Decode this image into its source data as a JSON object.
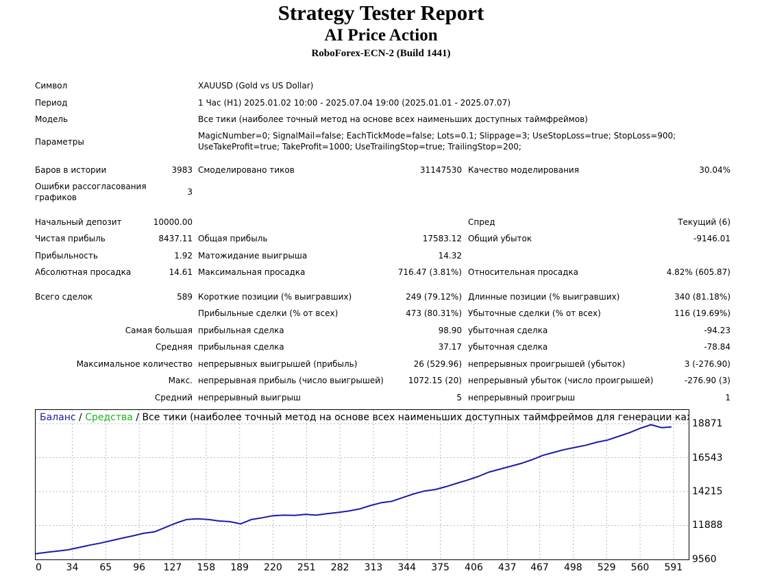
{
  "report": {
    "title": "Strategy Tester Report",
    "expert": "AI Price Action",
    "server": "RoboForex-ECN-2 (Build 1441)"
  },
  "info": {
    "symbol_label": "Символ",
    "symbol_value": "XAUUSD (Gold vs US Dollar)",
    "period_label": "Период",
    "period_value": "1 Час (H1) 2025.01.02 10:00 - 2025.07.04 19:00 (2025.01.01 - 2025.07.07)",
    "model_label": "Модель",
    "model_value": "Все тики (наиболее точный метод на основе всех наименьших доступных таймфреймов)",
    "params_label": "Параметры",
    "params_line1": "MagicNumber=0; SignalMail=false; EachTickMode=false; Lots=0.1; Slippage=3; UseStopLoss=true; StopLoss=900;",
    "params_line2": "UseTakeProfit=true; TakeProfit=1000; UseTrailingStop=true; TrailingStop=200;"
  },
  "stats": {
    "bars_label": "Баров в истории",
    "bars_value": "3983",
    "ticks_label": "Смоделировано тиков",
    "ticks_value": "31147530",
    "quality_label": "Качество моделирования",
    "quality_value": "30.04%",
    "mismatch_label_1": "Ошибки рассогласования",
    "mismatch_label_2": "графиков",
    "mismatch_value": "3",
    "deposit_label": "Начальный депозит",
    "deposit_value": "10000.00",
    "spread_label": "Спред",
    "spread_value": "Текущий (6)",
    "net_label": "Чистая прибыль",
    "net_value": "8437.11",
    "gross_profit_label": "Общая прибыль",
    "gross_profit_value": "17583.12",
    "gross_loss_label": "Общий убыток",
    "gross_loss_value": "-9146.01",
    "pf_label": "Прибыльность",
    "pf_value": "1.92",
    "payoff_label": "Матожидание выигрыша",
    "payoff_value": "14.32",
    "abs_dd_label": "Абсолютная просадка",
    "abs_dd_value": "14.61",
    "max_dd_label": "Максимальная просадка",
    "max_dd_value": "716.47 (3.81%)",
    "rel_dd_label": "Относительная просадка",
    "rel_dd_value": "4.82% (605.87)",
    "trades_label": "Всего сделок",
    "trades_value": "589",
    "short_label": "Короткие позиции (% выигравших)",
    "short_value": "249 (79.12%)",
    "long_label": "Длинные позиции (% выигравших)",
    "long_value": "340 (81.18%)",
    "profit_trades_label": "Прибыльные сделки (% от всех)",
    "profit_trades_value": "473 (80.31%)",
    "loss_trades_label": "Убыточные сделки (% от всех)",
    "loss_trades_value": "116 (19.69%)",
    "largest_label": "Самая большая",
    "largest_profit_label": "прибыльная сделка",
    "largest_profit_value": "98.90",
    "largest_loss_label": "убыточная сделка",
    "largest_loss_value": "-94.23",
    "avg_label": "Средняя",
    "avg_profit_label": "прибыльная сделка",
    "avg_profit_value": "37.17",
    "avg_loss_label": "убыточная сделка",
    "avg_loss_value": "-78.84",
    "maxcount_label": "Максимальное количество",
    "maxcount_wins_label": "непрерывных выигрышей (прибыль)",
    "maxcount_wins_value": "26 (529.96)",
    "maxcount_losses_label": "непрерывных проигрышей (убыток)",
    "maxcount_losses_value": "3 (-276.90)",
    "maxc_label": "Макс.",
    "maxc_profit_label": "непрерывная прибыль (число выигрышей)",
    "maxc_profit_value": "1072.15 (20)",
    "maxc_loss_label": "непрерывный убыток (число проигрышей)",
    "maxc_loss_value": "-276.90 (3)",
    "avgc_label": "Средний",
    "avgc_win_label": "непрерывный выигрыш",
    "avgc_win_value": "5",
    "avgc_loss_label": "непрерывный проигрыш",
    "avgc_loss_value": "1"
  },
  "chart_data": {
    "type": "line",
    "legend_balance": "Баланс",
    "legend_sep1": " / ",
    "legend_equity": "Средства",
    "legend_sep2": " / ",
    "legend_rest": "Все тики (наиболее точный метод на основе всех наименьших доступных таймфреймов для генерации каждо",
    "balance_color": "#1a1aa8",
    "equity_color": "#18b418",
    "grid": true,
    "ylim": [
      9560,
      18871
    ],
    "xlim": [
      0,
      605
    ],
    "y_ticks": [
      "18871",
      "16543",
      "14215",
      "11888",
      "9560"
    ],
    "x_ticks": [
      "0",
      "34",
      "65",
      "96",
      "127",
      "158",
      "189",
      "220",
      "251",
      "282",
      "313",
      "344",
      "375",
      "406",
      "437",
      "467",
      "498",
      "529",
      "560",
      "591"
    ],
    "series": [
      {
        "name": "Баланс",
        "x": [
          0,
          10,
          20,
          30,
          40,
          50,
          60,
          70,
          80,
          90,
          100,
          110,
          120,
          130,
          140,
          150,
          160,
          170,
          180,
          190,
          200,
          210,
          220,
          230,
          240,
          250,
          260,
          270,
          280,
          290,
          300,
          310,
          320,
          330,
          340,
          350,
          360,
          370,
          380,
          390,
          400,
          410,
          420,
          430,
          440,
          450,
          460,
          470,
          480,
          490,
          500,
          510,
          520,
          530,
          540,
          550,
          560,
          570,
          580,
          589
        ],
        "y": [
          9950,
          10050,
          10130,
          10220,
          10380,
          10540,
          10680,
          10850,
          11020,
          11180,
          11350,
          11450,
          11750,
          12050,
          12300,
          12350,
          12300,
          12200,
          12150,
          12000,
          12300,
          12420,
          12560,
          12600,
          12580,
          12650,
          12600,
          12700,
          12780,
          12880,
          13020,
          13250,
          13450,
          13550,
          13800,
          14050,
          14250,
          14350,
          14550,
          14780,
          15000,
          15250,
          15550,
          15750,
          15950,
          16150,
          16400,
          16700,
          16900,
          17100,
          17250,
          17400,
          17600,
          17750,
          18000,
          18250,
          18550,
          18800,
          18600,
          18650
        ]
      }
    ]
  }
}
